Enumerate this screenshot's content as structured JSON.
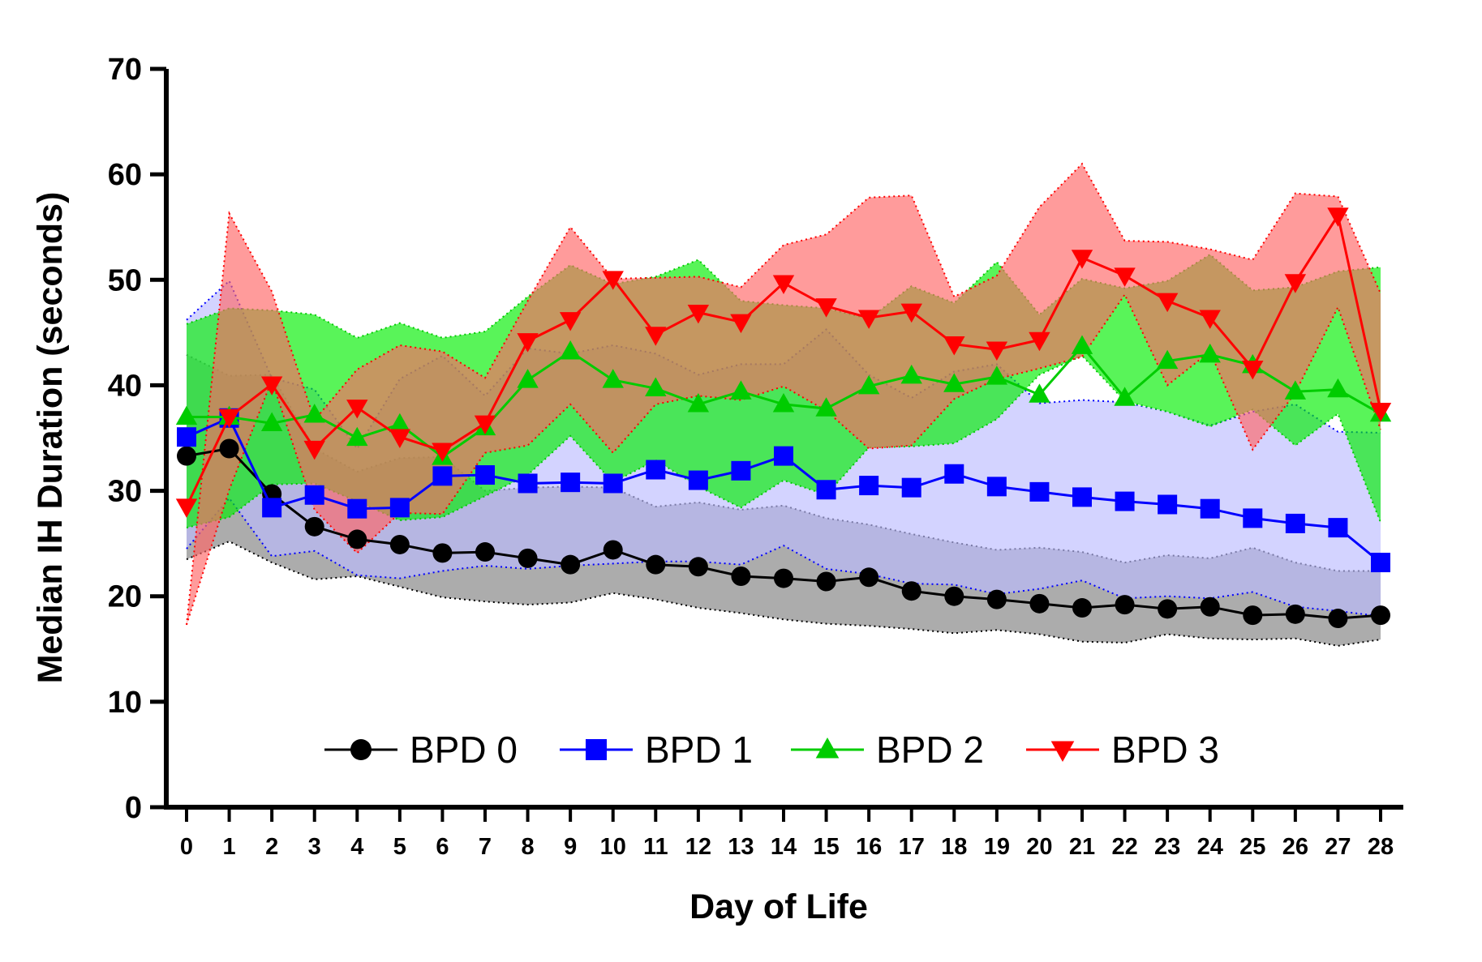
{
  "chart_data": {
    "type": "line",
    "xlabel": "Day of  Life",
    "ylabel": "Median IH Duration (seconds)",
    "xlim": [
      0,
      28
    ],
    "ylim": [
      0,
      70
    ],
    "y_ticks": [
      0,
      10,
      20,
      30,
      40,
      50,
      60,
      70
    ],
    "x_ticks": [
      "0",
      "1",
      "2",
      "3",
      "4",
      "5",
      "6",
      "7",
      "8",
      "9",
      "10",
      "11",
      "12",
      "13",
      "14",
      "15",
      "16",
      "17",
      "18",
      "19",
      "20",
      "21",
      "22",
      "23",
      "24",
      "25",
      "26",
      "27",
      "28"
    ],
    "grid": false,
    "legend_position": "bottom-center",
    "x": [
      0,
      1,
      2,
      3,
      4,
      5,
      6,
      7,
      8,
      9,
      10,
      11,
      12,
      13,
      14,
      15,
      16,
      17,
      18,
      19,
      20,
      21,
      22,
      23,
      24,
      25,
      26,
      27,
      28
    ],
    "series": [
      {
        "name": "BPD 0",
        "color": "#000000",
        "band_color": "#808080",
        "marker": "circle",
        "values": [
          33.3,
          34.0,
          29.7,
          26.6,
          25.4,
          24.9,
          24.1,
          24.2,
          23.6,
          23.0,
          24.4,
          23.0,
          22.8,
          21.9,
          21.7,
          21.4,
          21.8,
          20.5,
          20.0,
          19.7,
          19.3,
          18.9,
          19.2,
          18.8,
          19.0,
          18.2,
          18.3,
          17.9,
          18.2
        ],
        "upper": [
          42.9,
          40.9,
          41.0,
          34.0,
          31.8,
          33.1,
          33.2,
          30.0,
          30.3,
          30.4,
          30.3,
          28.5,
          28.9,
          28.2,
          28.6,
          27.4,
          26.8,
          25.9,
          25.1,
          24.4,
          24.6,
          24.2,
          23.2,
          23.9,
          23.6,
          24.6,
          23.2,
          22.4,
          22.4
        ],
        "lower": [
          23.5,
          25.2,
          23.2,
          21.6,
          21.9,
          20.9,
          19.9,
          19.5,
          19.2,
          19.4,
          20.3,
          19.7,
          18.9,
          18.4,
          17.8,
          17.4,
          17.2,
          16.9,
          16.5,
          16.8,
          16.4,
          15.7,
          15.6,
          16.4,
          16.0,
          15.9,
          16.0,
          15.3,
          15.9
        ]
      },
      {
        "name": "BPD 1",
        "color": "#0000ff",
        "band_color": "#bbbbff",
        "marker": "square",
        "values": [
          35.1,
          36.9,
          28.4,
          29.6,
          28.3,
          28.4,
          31.4,
          31.5,
          30.7,
          30.8,
          30.7,
          32.0,
          31.0,
          31.9,
          33.3,
          30.1,
          30.5,
          30.3,
          31.6,
          30.4,
          29.9,
          29.4,
          29.0,
          28.7,
          28.3,
          27.4,
          26.9,
          26.5,
          23.2
        ],
        "upper": [
          46.2,
          49.9,
          40.7,
          39.6,
          34.0,
          40.6,
          42.8,
          39.0,
          43.5,
          43.0,
          43.8,
          43.0,
          41.0,
          42.0,
          42.0,
          45.3,
          41.0,
          38.8,
          41.3,
          42.0,
          38.3,
          38.6,
          38.4,
          37.5,
          36.2,
          37.5,
          38.2,
          35.6,
          35.5
        ],
        "lower": [
          24.5,
          29.3,
          23.8,
          24.3,
          22.0,
          21.7,
          22.4,
          22.9,
          22.6,
          22.9,
          23.1,
          23.3,
          23.3,
          23.0,
          24.8,
          22.6,
          22.1,
          21.2,
          21.1,
          20.2,
          20.7,
          21.5,
          19.8,
          20.0,
          19.8,
          20.4,
          19.0,
          18.6,
          18.1
        ]
      },
      {
        "name": "BPD 2",
        "color": "#00cc00",
        "band_color": "#00ee00",
        "marker": "triangle-up",
        "values": [
          37.0,
          37.0,
          36.4,
          37.2,
          35.0,
          36.3,
          33.2,
          36.0,
          40.5,
          43.2,
          40.5,
          39.7,
          38.2,
          39.4,
          38.2,
          37.8,
          39.9,
          40.9,
          40.1,
          40.8,
          39.1,
          43.7,
          38.8,
          42.3,
          42.9,
          41.9,
          39.4,
          39.6,
          37.3
        ],
        "upper": [
          45.8,
          47.3,
          47.1,
          46.7,
          44.5,
          45.9,
          44.5,
          45.1,
          48.4,
          51.4,
          49.6,
          50.3,
          51.9,
          48.0,
          47.6,
          47.3,
          46.3,
          49.4,
          47.8,
          51.7,
          46.7,
          50.1,
          49.2,
          49.9,
          52.4,
          49.0,
          49.3,
          50.8,
          51.2
        ],
        "lower": [
          26.5,
          27.5,
          30.6,
          30.7,
          29.0,
          27.2,
          27.5,
          29.5,
          31.5,
          35.2,
          30.8,
          32.9,
          30.4,
          28.4,
          31.0,
          29.6,
          34.1,
          34.2,
          34.5,
          36.8,
          41.0,
          42.8,
          38.5,
          37.5,
          36.1,
          37.7,
          34.3,
          37.3,
          27.0
        ]
      },
      {
        "name": "BPD 3",
        "color": "#ff0000",
        "band_color": "#ff6666",
        "marker": "triangle-down",
        "values": [
          28.5,
          37.0,
          40.1,
          34.0,
          37.9,
          35.1,
          33.8,
          36.4,
          44.2,
          46.2,
          50.1,
          44.8,
          46.9,
          46.0,
          49.7,
          47.5,
          46.4,
          47.0,
          43.9,
          43.4,
          44.3,
          52.1,
          50.4,
          48.0,
          46.4,
          41.6,
          49.8,
          56.1,
          37.6
        ],
        "upper": [
          17.3,
          56.3,
          48.9,
          36.7,
          41.5,
          43.8,
          43.2,
          40.7,
          48.0,
          55.0,
          50.1,
          50.2,
          50.3,
          49.3,
          53.3,
          54.3,
          57.8,
          58.0,
          48.4,
          50.4,
          56.9,
          61.0,
          53.7,
          53.6,
          52.9,
          51.9,
          58.2,
          57.9,
          48.7
        ],
        "lower": [
          17.3,
          30.1,
          40.5,
          28.2,
          24.1,
          27.9,
          27.8,
          33.6,
          34.3,
          38.2,
          33.6,
          38.2,
          39.0,
          38.6,
          39.9,
          37.6,
          34.0,
          34.3,
          38.7,
          40.6,
          41.6,
          42.7,
          48.6,
          40.0,
          43.2,
          33.9,
          39.3,
          47.4,
          35.8
        ]
      }
    ]
  }
}
